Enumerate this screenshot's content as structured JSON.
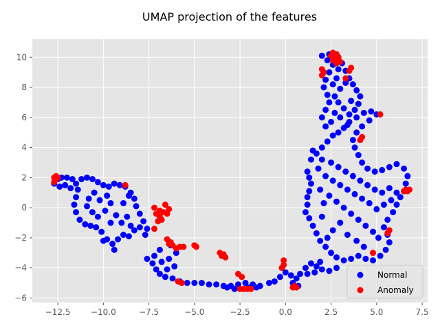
{
  "chart_data": {
    "type": "scatter",
    "title": "UMAP projection of the features",
    "xlabel": "",
    "ylabel": "",
    "xlim": [
      -13.9,
      7.8
    ],
    "ylim": [
      -6.3,
      11.2
    ],
    "xticks": [
      -12.5,
      -10.0,
      -7.5,
      -5.0,
      -2.5,
      0.0,
      2.5,
      5.0,
      7.5
    ],
    "xtick_labels": [
      "−12.5",
      "−10.0",
      "−7.5",
      "−5.0",
      "−2.5",
      "0.0",
      "2.5",
      "5.0",
      "7.5"
    ],
    "yticks": [
      -6,
      -4,
      -2,
      0,
      2,
      4,
      6,
      8,
      10
    ],
    "ytick_labels": [
      "−6",
      "−4",
      "−2",
      "0",
      "2",
      "4",
      "6",
      "8",
      "10"
    ],
    "grid": true,
    "legend_position": "bottom-right",
    "series": [
      {
        "name": "Normal",
        "color": "#0000ff",
        "points": [
          [
            -12.7,
            1.6
          ],
          [
            -12.5,
            1.9
          ],
          [
            -12.3,
            2.0
          ],
          [
            -12.0,
            2.0
          ],
          [
            -11.7,
            1.9
          ],
          [
            -11.5,
            1.6
          ],
          [
            -11.8,
            1.3
          ],
          [
            -12.1,
            1.5
          ],
          [
            -12.4,
            1.4
          ],
          [
            -11.2,
            1.9
          ],
          [
            -10.9,
            2.0
          ],
          [
            -10.6,
            1.9
          ],
          [
            -10.3,
            1.7
          ],
          [
            -10.0,
            1.5
          ],
          [
            -9.7,
            1.4
          ],
          [
            -9.4,
            1.6
          ],
          [
            -9.1,
            1.5
          ],
          [
            -8.8,
            1.4
          ],
          [
            -8.5,
            1.0
          ],
          [
            -8.3,
            0.6
          ],
          [
            -8.2,
            0.1
          ],
          [
            -8.0,
            -0.4
          ],
          [
            -7.8,
            -0.9
          ],
          [
            -7.6,
            -1.4
          ],
          [
            -11.4,
            1.2
          ],
          [
            -11.5,
            0.7
          ],
          [
            -11.6,
            0.2
          ],
          [
            -11.5,
            -0.3
          ],
          [
            -11.3,
            -0.8
          ],
          [
            -11.0,
            -1.1
          ],
          [
            -10.7,
            -1.2
          ],
          [
            -10.4,
            -1.3
          ],
          [
            -10.1,
            -1.6
          ],
          [
            -9.8,
            -2.1
          ],
          [
            -9.5,
            -2.4
          ],
          [
            -9.2,
            -2.1
          ],
          [
            -8.9,
            -1.8
          ],
          [
            -8.6,
            -1.9
          ],
          [
            -8.3,
            -1.5
          ],
          [
            -8.0,
            -1.3
          ],
          [
            -7.7,
            -1.8
          ],
          [
            -9.4,
            -2.8
          ],
          [
            -10.0,
            -2.2
          ],
          [
            -10.3,
            -0.6
          ],
          [
            -9.9,
            -0.2
          ],
          [
            -9.6,
            0.3
          ],
          [
            -9.8,
            0.8
          ],
          [
            -10.2,
            0.5
          ],
          [
            -10.5,
            1.0
          ],
          [
            -10.8,
            0.6
          ],
          [
            -10.9,
            0.1
          ],
          [
            -10.6,
            -0.3
          ],
          [
            -9.3,
            -0.5
          ],
          [
            -9.0,
            -1.0
          ],
          [
            -8.7,
            -0.6
          ],
          [
            -8.5,
            -1.2
          ],
          [
            -9.6,
            -1.0
          ],
          [
            -8.9,
            0.3
          ],
          [
            -8.6,
            0.8
          ],
          [
            -7.6,
            -3.4
          ],
          [
            -7.3,
            -3.7
          ],
          [
            -7.1,
            -4.1
          ],
          [
            -6.9,
            -4.4
          ],
          [
            -6.6,
            -4.6
          ],
          [
            -6.2,
            -4.7
          ],
          [
            -5.8,
            -4.9
          ],
          [
            -5.4,
            -5.0
          ],
          [
            -5.0,
            -5.0
          ],
          [
            -4.6,
            -5.0
          ],
          [
            -4.2,
            -5.1
          ],
          [
            -3.8,
            -5.1
          ],
          [
            -3.4,
            -5.2
          ],
          [
            -3.0,
            -5.2
          ],
          [
            -2.6,
            -5.1
          ],
          [
            -2.2,
            -5.0
          ],
          [
            -1.8,
            -5.1
          ],
          [
            -1.4,
            -5.2
          ],
          [
            -1.6,
            -5.3
          ],
          [
            -2.0,
            -5.3
          ],
          [
            -2.8,
            -5.4
          ],
          [
            -3.2,
            -5.3
          ],
          [
            -0.9,
            -5.0
          ],
          [
            -0.6,
            -4.9
          ],
          [
            -0.3,
            -4.6
          ],
          [
            0.0,
            -4.3
          ],
          [
            0.3,
            -4.5
          ],
          [
            0.6,
            -4.7
          ],
          [
            0.8,
            -4.4
          ],
          [
            1.1,
            -4.0
          ],
          [
            1.4,
            -3.7
          ],
          [
            1.7,
            -3.9
          ],
          [
            2.0,
            -4.1
          ],
          [
            2.4,
            -4.2
          ],
          [
            2.8,
            -4.0
          ],
          [
            1.2,
            -4.4
          ],
          [
            0.4,
            -5.0
          ],
          [
            0.7,
            -5.2
          ],
          [
            1.9,
            -3.6
          ],
          [
            1.6,
            -4.3
          ],
          [
            -7.2,
            -3.2
          ],
          [
            -6.8,
            -3.6
          ],
          [
            -6.4,
            -3.4
          ],
          [
            -6.1,
            -3.9
          ],
          [
            -6.5,
            -4.1
          ],
          [
            -6.0,
            -3.0
          ],
          [
            -6.3,
            -2.5
          ],
          [
            -6.9,
            -2.8
          ],
          [
            1.2,
            2.4
          ],
          [
            1.3,
            2.0
          ],
          [
            1.4,
            1.6
          ],
          [
            1.3,
            1.1
          ],
          [
            1.2,
            0.7
          ],
          [
            1.2,
            0.2
          ],
          [
            1.1,
            -0.3
          ],
          [
            1.3,
            -0.7
          ],
          [
            1.5,
            -1.2
          ],
          [
            1.7,
            -1.7
          ],
          [
            1.9,
            -2.2
          ],
          [
            2.2,
            -2.6
          ],
          [
            2.5,
            -3.0
          ],
          [
            2.8,
            -3.3
          ],
          [
            3.2,
            -3.5
          ],
          [
            3.6,
            -3.4
          ],
          [
            4.0,
            -3.2
          ],
          [
            4.4,
            -3.4
          ],
          [
            4.8,
            -3.5
          ],
          [
            5.2,
            -3.2
          ],
          [
            5.5,
            -2.8
          ],
          [
            5.7,
            -2.3
          ],
          [
            5.6,
            -1.8
          ],
          [
            5.4,
            -1.3
          ],
          [
            5.6,
            -0.8
          ],
          [
            5.9,
            -0.3
          ],
          [
            6.1,
            0.2
          ],
          [
            6.3,
            0.7
          ],
          [
            6.5,
            1.1
          ],
          [
            6.6,
            1.6
          ],
          [
            6.7,
            2.1
          ],
          [
            6.5,
            2.6
          ],
          [
            6.1,
            2.9
          ],
          [
            5.7,
            2.7
          ],
          [
            5.3,
            2.5
          ],
          [
            4.9,
            2.4
          ],
          [
            4.5,
            2.6
          ],
          [
            4.2,
            3.0
          ],
          [
            4.0,
            3.5
          ],
          [
            3.8,
            4.0
          ],
          [
            3.7,
            4.5
          ],
          [
            3.9,
            5.0
          ],
          [
            4.2,
            5.4
          ],
          [
            4.6,
            5.8
          ],
          [
            5.0,
            6.2
          ],
          [
            4.7,
            6.4
          ],
          [
            4.3,
            6.3
          ],
          [
            3.9,
            6.0
          ],
          [
            3.5,
            5.7
          ],
          [
            3.2,
            5.3
          ],
          [
            2.9,
            5.0
          ],
          [
            2.6,
            4.8
          ],
          [
            2.3,
            4.4
          ],
          [
            2.0,
            4.0
          ],
          [
            1.7,
            3.6
          ],
          [
            1.4,
            3.2
          ],
          [
            1.5,
            3.8
          ],
          [
            2.0,
            3.2
          ],
          [
            2.5,
            3.0
          ],
          [
            2.9,
            2.7
          ],
          [
            3.3,
            2.4
          ],
          [
            3.7,
            2.1
          ],
          [
            4.1,
            1.8
          ],
          [
            4.5,
            1.5
          ],
          [
            4.9,
            1.2
          ],
          [
            5.3,
            1.0
          ],
          [
            5.7,
            1.3
          ],
          [
            6.1,
            1.0
          ],
          [
            5.8,
            0.5
          ],
          [
            5.4,
            0.2
          ],
          [
            5.0,
            -0.1
          ],
          [
            4.6,
            0.3
          ],
          [
            4.2,
            0.6
          ],
          [
            3.8,
            0.9
          ],
          [
            3.4,
            1.2
          ],
          [
            3.0,
            1.5
          ],
          [
            2.6,
            1.8
          ],
          [
            2.2,
            2.1
          ],
          [
            1.8,
            2.6
          ],
          [
            2.4,
            0.8
          ],
          [
            2.8,
            0.4
          ],
          [
            3.2,
            0.0
          ],
          [
            3.6,
            -0.4
          ],
          [
            4.0,
            -0.8
          ],
          [
            4.4,
            -1.2
          ],
          [
            4.8,
            -1.6
          ],
          [
            5.1,
            -2.0
          ],
          [
            3.0,
            -1.0
          ],
          [
            2.6,
            -1.5
          ],
          [
            2.3,
            -2.0
          ],
          [
            3.4,
            -1.8
          ],
          [
            3.9,
            -2.2
          ],
          [
            4.3,
            -2.6
          ],
          [
            2.0,
            -0.6
          ],
          [
            2.1,
            0.3
          ],
          [
            1.9,
            1.2
          ],
          [
            2.0,
            6.0
          ],
          [
            2.2,
            6.5
          ],
          [
            2.4,
            7.0
          ],
          [
            2.3,
            7.5
          ],
          [
            2.1,
            8.0
          ],
          [
            2.2,
            8.5
          ],
          [
            2.4,
            9.0
          ],
          [
            2.6,
            9.5
          ],
          [
            2.3,
            9.8
          ],
          [
            2.0,
            10.1
          ],
          [
            2.4,
            10.2
          ],
          [
            2.9,
            10.0
          ],
          [
            3.1,
            9.6
          ],
          [
            3.3,
            9.1
          ],
          [
            3.5,
            8.6
          ],
          [
            3.7,
            8.2
          ],
          [
            3.9,
            7.8
          ],
          [
            4.1,
            7.4
          ],
          [
            4.0,
            6.9
          ],
          [
            3.8,
            6.5
          ],
          [
            3.5,
            6.2
          ],
          [
            3.2,
            6.6
          ],
          [
            2.9,
            7.0
          ],
          [
            2.7,
            7.4
          ],
          [
            3.0,
            7.9
          ],
          [
            3.3,
            8.3
          ],
          [
            2.8,
            8.6
          ],
          [
            2.6,
            8.2
          ],
          [
            2.7,
            6.3
          ],
          [
            3.0,
            6.0
          ],
          [
            2.5,
            5.7
          ],
          [
            2.2,
            5.4
          ],
          [
            3.4,
            5.5
          ],
          [
            3.6,
            7.1
          ],
          [
            2.9,
            9.2
          ]
        ]
      },
      {
        "name": "Anomaly",
        "color": "#ff0000",
        "points": [
          [
            -12.7,
            1.7
          ],
          [
            -12.6,
            1.9
          ],
          [
            -12.5,
            2.0
          ],
          [
            -12.6,
            2.1
          ],
          [
            -12.7,
            2.0
          ],
          [
            -8.8,
            1.5
          ],
          [
            -7.2,
            0.0
          ],
          [
            -7.1,
            -0.4
          ],
          [
            -6.9,
            -0.6
          ],
          [
            -6.7,
            -0.3
          ],
          [
            -6.5,
            -0.4
          ],
          [
            -6.6,
            0.2
          ],
          [
            -6.8,
            -0.8
          ],
          [
            -7.0,
            -0.9
          ],
          [
            -6.4,
            -0.1
          ],
          [
            -7.2,
            -1.4
          ],
          [
            -6.9,
            -0.2
          ],
          [
            -6.5,
            -2.1
          ],
          [
            -6.3,
            -2.3
          ],
          [
            -6.2,
            -2.5
          ],
          [
            -6.0,
            -2.7
          ],
          [
            -5.8,
            -2.6
          ],
          [
            -5.6,
            -2.6
          ],
          [
            -6.4,
            -2.4
          ],
          [
            -5.0,
            -2.5
          ],
          [
            -4.9,
            -2.6
          ],
          [
            -3.6,
            -3.0
          ],
          [
            -3.4,
            -3.1
          ],
          [
            -3.3,
            -3.3
          ],
          [
            -3.5,
            -3.2
          ],
          [
            -5.9,
            -4.9
          ],
          [
            -5.7,
            -5.0
          ],
          [
            -2.6,
            -4.4
          ],
          [
            -2.4,
            -4.6
          ],
          [
            -2.5,
            -5.4
          ],
          [
            -2.3,
            -5.4
          ],
          [
            -2.1,
            -5.4
          ],
          [
            -1.9,
            -5.4
          ],
          [
            -0.1,
            -3.5
          ],
          [
            -0.1,
            -3.8
          ],
          [
            -0.2,
            -4.0
          ],
          [
            0.4,
            -5.3
          ],
          [
            0.6,
            -5.3
          ],
          [
            0.5,
            -5.2
          ],
          [
            2.0,
            8.8
          ],
          [
            2.1,
            9.0
          ],
          [
            2.0,
            9.2
          ],
          [
            2.5,
            10.1
          ],
          [
            2.6,
            10.3
          ],
          [
            2.8,
            10.2
          ],
          [
            2.9,
            10.0
          ],
          [
            2.7,
            9.9
          ],
          [
            2.6,
            9.8
          ],
          [
            3.0,
            9.7
          ],
          [
            2.8,
            9.6
          ],
          [
            3.5,
            9.1
          ],
          [
            3.6,
            9.3
          ],
          [
            3.3,
            8.6
          ],
          [
            4.2,
            4.7
          ],
          [
            4.1,
            4.5
          ],
          [
            5.2,
            6.2
          ],
          [
            6.6,
            1.2
          ],
          [
            6.7,
            1.1
          ],
          [
            6.8,
            1.2
          ],
          [
            6.5,
            1.1
          ],
          [
            5.7,
            -1.5
          ],
          [
            5.6,
            -1.7
          ],
          [
            4.8,
            -3.0
          ]
        ]
      }
    ]
  }
}
